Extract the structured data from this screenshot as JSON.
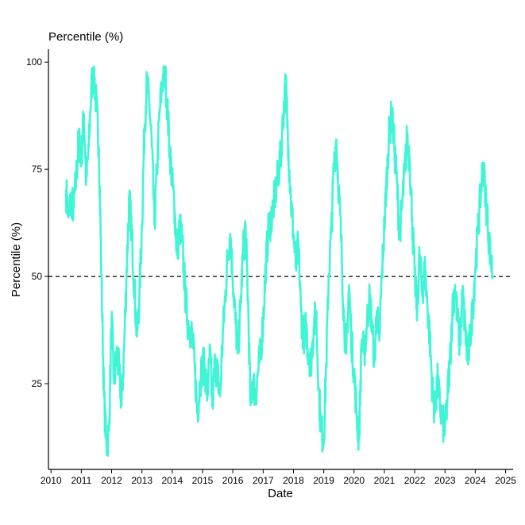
{
  "chart_data": {
    "type": "line",
    "title": "Percentile (%)",
    "xlabel": "Date",
    "ylabel": "Percentile (%)",
    "xlim": [
      "2009-12-01",
      "2025-04-01"
    ],
    "ylim": [
      5,
      103
    ],
    "grid": false,
    "x_ticks": [
      "2010",
      "2011",
      "2012",
      "2013",
      "2014",
      "2015",
      "2016",
      "2017",
      "2018",
      "2019",
      "2020",
      "2021",
      "2022",
      "2023",
      "2024",
      "2025"
    ],
    "y_ticks": [
      "25",
      "50",
      "75",
      "100"
    ],
    "reference_line": {
      "y": 50,
      "style": "dashed",
      "color": "#000000"
    },
    "series": [
      {
        "color": "#40F5D6",
        "x": [
          "2010-07-01",
          "2010-08-01",
          "2010-09-01",
          "2010-10-01",
          "2010-11-01",
          "2010-12-01",
          "2011-01-01",
          "2011-02-01",
          "2011-03-01",
          "2011-04-01",
          "2011-05-01",
          "2011-06-01",
          "2011-07-01",
          "2011-08-01",
          "2011-09-01",
          "2011-10-01",
          "2011-11-01",
          "2011-12-01",
          "2012-01-01",
          "2012-02-01",
          "2012-03-01",
          "2012-04-01",
          "2012-05-01",
          "2012-06-01",
          "2012-07-01",
          "2012-08-01",
          "2012-09-01",
          "2012-10-01",
          "2012-11-01",
          "2012-12-01",
          "2013-01-01",
          "2013-02-01",
          "2013-03-01",
          "2013-04-01",
          "2013-05-01",
          "2013-06-01",
          "2013-07-01",
          "2013-08-01",
          "2013-09-01",
          "2013-10-01",
          "2013-11-01",
          "2013-12-01",
          "2014-01-01",
          "2014-02-01",
          "2014-03-01",
          "2014-04-01",
          "2014-05-01",
          "2014-06-01",
          "2014-07-01",
          "2014-08-01",
          "2014-09-01",
          "2014-10-01",
          "2014-11-01",
          "2014-12-01",
          "2015-01-01",
          "2015-02-01",
          "2015-03-01",
          "2015-04-01",
          "2015-05-01",
          "2015-06-01",
          "2015-07-01",
          "2015-08-01",
          "2015-09-01",
          "2015-10-01",
          "2015-11-01",
          "2015-12-01",
          "2016-01-01",
          "2016-02-01",
          "2016-03-01",
          "2016-04-01",
          "2016-05-01",
          "2016-06-01",
          "2016-07-01",
          "2016-08-01",
          "2016-09-01",
          "2016-10-01",
          "2016-11-01",
          "2016-12-01",
          "2017-01-01",
          "2017-02-01",
          "2017-03-01",
          "2017-04-01",
          "2017-05-01",
          "2017-06-01",
          "2017-07-01",
          "2017-08-01",
          "2017-09-01",
          "2017-10-01",
          "2017-11-01",
          "2017-12-01",
          "2018-01-01",
          "2018-02-01",
          "2018-03-01",
          "2018-04-01",
          "2018-05-01",
          "2018-06-01",
          "2018-07-01",
          "2018-08-01",
          "2018-09-01",
          "2018-10-01",
          "2018-11-01",
          "2018-12-01",
          "2019-01-01",
          "2019-02-01",
          "2019-03-01",
          "2019-04-01",
          "2019-05-01",
          "2019-06-01",
          "2019-07-01",
          "2019-08-01",
          "2019-09-01",
          "2019-10-01",
          "2019-11-01",
          "2019-12-01",
          "2020-01-01",
          "2020-02-01",
          "2020-03-01",
          "2020-04-01",
          "2020-05-01",
          "2020-06-01",
          "2020-07-01",
          "2020-08-01",
          "2020-09-01",
          "2020-10-01",
          "2020-11-01",
          "2020-12-01",
          "2021-01-01",
          "2021-02-01",
          "2021-03-01",
          "2021-04-01",
          "2021-05-01",
          "2021-06-01",
          "2021-07-01",
          "2021-08-01",
          "2021-09-01",
          "2021-10-01",
          "2021-11-01",
          "2021-12-01",
          "2022-01-01",
          "2022-02-01",
          "2022-03-01",
          "2022-04-01",
          "2022-05-01",
          "2022-06-01",
          "2022-07-01",
          "2022-08-01",
          "2022-09-01",
          "2022-10-01",
          "2022-11-01",
          "2022-12-01",
          "2023-01-01",
          "2023-02-01",
          "2023-03-01",
          "2023-04-01",
          "2023-05-01",
          "2023-06-01",
          "2023-07-01",
          "2023-08-01",
          "2023-09-01",
          "2023-10-01",
          "2023-11-01",
          "2023-12-01",
          "2024-01-01",
          "2024-02-01",
          "2024-03-01",
          "2024-04-01",
          "2024-05-01",
          "2024-06-01",
          "2024-07-01",
          "2024-08-01"
        ],
        "y": [
          70,
          64,
          68,
          66,
          73,
          82,
          78,
          88,
          72,
          80,
          94,
          98,
          90,
          80,
          50,
          22,
          10,
          14,
          40,
          25,
          32,
          28,
          20,
          34,
          52,
          68,
          60,
          48,
          36,
          45,
          62,
          85,
          95,
          90,
          80,
          62,
          75,
          88,
          95,
          99,
          90,
          80,
          72,
          65,
          55,
          62,
          58,
          48,
          40,
          38,
          36,
          28,
          18,
          25,
          30,
          28,
          22,
          32,
          20,
          30,
          27,
          22,
          36,
          45,
          55,
          60,
          50,
          40,
          32,
          42,
          55,
          62,
          45,
          20,
          26,
          22,
          28,
          32,
          40,
          52,
          60,
          63,
          66,
          70,
          74,
          78,
          88,
          95,
          80,
          68,
          60,
          52,
          58,
          42,
          36,
          38,
          32,
          30,
          38,
          42,
          24,
          14,
          12,
          30,
          50,
          60,
          75,
          82,
          70,
          58,
          40,
          32,
          48,
          35,
          28,
          18,
          12,
          35,
          32,
          38,
          45,
          40,
          30,
          42,
          35,
          50,
          62,
          74,
          84,
          88,
          80,
          72,
          60,
          66,
          74,
          82,
          78,
          64,
          50,
          42,
          55,
          46,
          52,
          44,
          36,
          24,
          18,
          26,
          20,
          16,
          14,
          22,
          30,
          42,
          48,
          40,
          34,
          46,
          38,
          30,
          36,
          42,
          52,
          60,
          68,
          76,
          70,
          62,
          55,
          50
        ]
      }
    ]
  }
}
